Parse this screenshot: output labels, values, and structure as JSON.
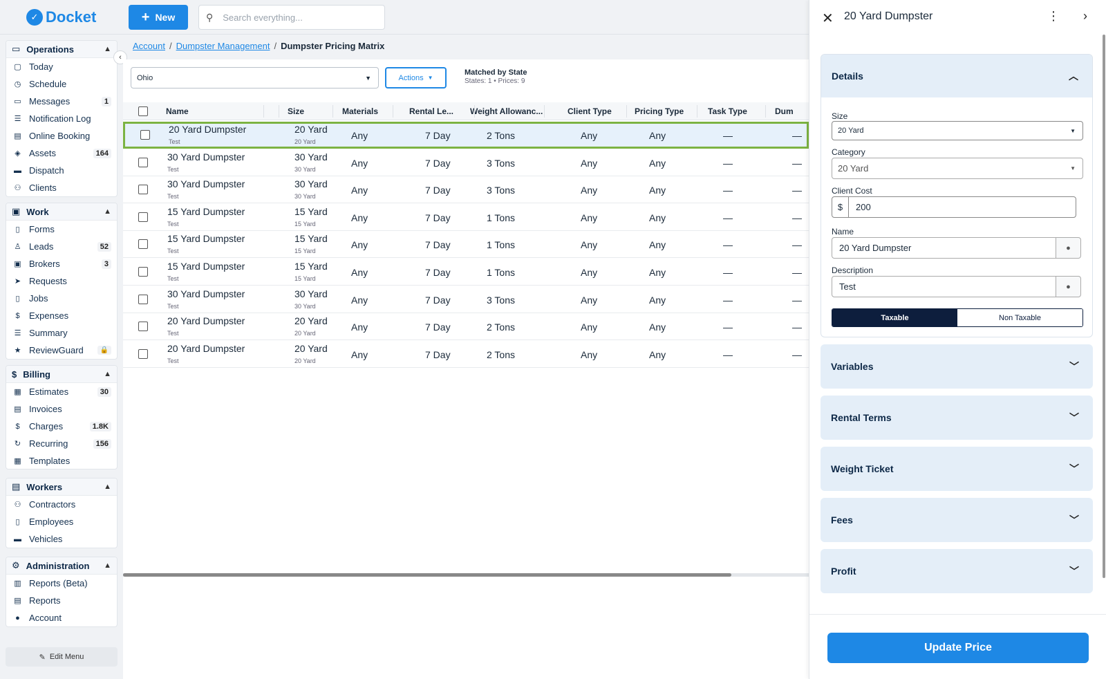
{
  "app": {
    "name": "Docket"
  },
  "topbar": {
    "new_label": "New",
    "search_placeholder": "Search everything..."
  },
  "sidebar": {
    "sections": [
      {
        "title": "Operations",
        "items": [
          {
            "label": "Today",
            "icon": "calendar-icon"
          },
          {
            "label": "Schedule",
            "icon": "clock-icon"
          },
          {
            "label": "Messages",
            "icon": "chat-icon",
            "badge": "1"
          },
          {
            "label": "Notification Log",
            "icon": "list-icon"
          },
          {
            "label": "Online Booking",
            "icon": "store-icon"
          },
          {
            "label": "Assets",
            "icon": "layers-icon",
            "badge": "164"
          },
          {
            "label": "Dispatch",
            "icon": "truck-icon"
          },
          {
            "label": "Clients",
            "icon": "people-icon"
          }
        ]
      },
      {
        "title": "Work",
        "items": [
          {
            "label": "Forms",
            "icon": "doc-icon"
          },
          {
            "label": "Leads",
            "icon": "person-add-icon",
            "badge": "52"
          },
          {
            "label": "Brokers",
            "icon": "briefcase-icon",
            "badge": "3"
          },
          {
            "label": "Requests",
            "icon": "send-icon"
          },
          {
            "label": "Jobs",
            "icon": "search-doc-icon"
          },
          {
            "label": "Expenses",
            "icon": "dollar-circle-icon"
          },
          {
            "label": "Summary",
            "icon": "summary-icon"
          },
          {
            "label": "ReviewGuard",
            "icon": "star-icon",
            "badge": "lock"
          }
        ]
      },
      {
        "title": "Billing",
        "items": [
          {
            "label": "Estimates",
            "icon": "calc-icon",
            "badge": "30"
          },
          {
            "label": "Invoices",
            "icon": "invoice-icon"
          },
          {
            "label": "Charges",
            "icon": "dollar-icon",
            "badge": "1.8K"
          },
          {
            "label": "Recurring",
            "icon": "refresh-icon",
            "badge": "156"
          },
          {
            "label": "Templates",
            "icon": "table-icon"
          }
        ]
      },
      {
        "title": "Workers",
        "items": [
          {
            "label": "Contractors",
            "icon": "contractor-icon"
          },
          {
            "label": "Employees",
            "icon": "badge-icon"
          },
          {
            "label": "Vehicles",
            "icon": "vehicle-icon"
          }
        ]
      },
      {
        "title": "Administration",
        "items": [
          {
            "label": "Reports (Beta)",
            "icon": "chart-icon"
          },
          {
            "label": "Reports",
            "icon": "report-icon"
          },
          {
            "label": "Account",
            "icon": "account-icon"
          }
        ]
      }
    ],
    "edit_menu": "Edit Menu"
  },
  "breadcrumb": {
    "items": [
      "Account",
      "Dumpster Management"
    ],
    "current": "Dumpster Pricing Matrix"
  },
  "toolbar": {
    "state_value": "Ohio",
    "actions_label": "Actions",
    "matched_title": "Matched by State",
    "matched_sub": "States: 1 • Prices: 9"
  },
  "table": {
    "columns": [
      "Name",
      "Size",
      "Materials",
      "Rental Le...",
      "Weight Allowanc...",
      "Client Type",
      "Pricing Type",
      "Task Type",
      "Dum"
    ],
    "rows": [
      {
        "name": "20 Yard Dumpster",
        "desc": "Test",
        "size": "20 Yard",
        "size_sub": "20 Yard",
        "materials": "Any",
        "rental": "7 Day",
        "weight": "2 Tons",
        "client": "Any",
        "pricing": "Any",
        "task": "—",
        "dum": "—"
      },
      {
        "name": "30 Yard Dumpster",
        "desc": "Test",
        "size": "30 Yard",
        "size_sub": "30 Yard",
        "materials": "Any",
        "rental": "7 Day",
        "weight": "3 Tons",
        "client": "Any",
        "pricing": "Any",
        "task": "—",
        "dum": "—"
      },
      {
        "name": "30 Yard Dumpster",
        "desc": "Test",
        "size": "30 Yard",
        "size_sub": "30 Yard",
        "materials": "Any",
        "rental": "7 Day",
        "weight": "3 Tons",
        "client": "Any",
        "pricing": "Any",
        "task": "—",
        "dum": "—"
      },
      {
        "name": "15 Yard Dumpster",
        "desc": "Test",
        "size": "15 Yard",
        "size_sub": "15 Yard",
        "materials": "Any",
        "rental": "7 Day",
        "weight": "1 Tons",
        "client": "Any",
        "pricing": "Any",
        "task": "—",
        "dum": "—"
      },
      {
        "name": "15 Yard Dumpster",
        "desc": "Test",
        "size": "15 Yard",
        "size_sub": "15 Yard",
        "materials": "Any",
        "rental": "7 Day",
        "weight": "1 Tons",
        "client": "Any",
        "pricing": "Any",
        "task": "—",
        "dum": "—"
      },
      {
        "name": "15 Yard Dumpster",
        "desc": "Test",
        "size": "15 Yard",
        "size_sub": "15 Yard",
        "materials": "Any",
        "rental": "7 Day",
        "weight": "1 Tons",
        "client": "Any",
        "pricing": "Any",
        "task": "—",
        "dum": "—"
      },
      {
        "name": "30 Yard Dumpster",
        "desc": "Test",
        "size": "30 Yard",
        "size_sub": "30 Yard",
        "materials": "Any",
        "rental": "7 Day",
        "weight": "3 Tons",
        "client": "Any",
        "pricing": "Any",
        "task": "—",
        "dum": "—"
      },
      {
        "name": "20 Yard Dumpster",
        "desc": "Test",
        "size": "20 Yard",
        "size_sub": "20 Yard",
        "materials": "Any",
        "rental": "7 Day",
        "weight": "2 Tons",
        "client": "Any",
        "pricing": "Any",
        "task": "—",
        "dum": "—"
      },
      {
        "name": "20 Yard Dumpster",
        "desc": "Test",
        "size": "20 Yard",
        "size_sub": "20 Yard",
        "materials": "Any",
        "rental": "7 Day",
        "weight": "2 Tons",
        "client": "Any",
        "pricing": "Any",
        "task": "—",
        "dum": "—"
      }
    ]
  },
  "drawer": {
    "title": "20 Yard Dumpster",
    "details": {
      "title": "Details",
      "size_label": "Size",
      "size_value": "20 Yard",
      "category_label": "Category",
      "category_value": "20 Yard",
      "cost_label": "Client Cost",
      "currency": "$",
      "cost_value": "200",
      "name_label": "Name",
      "name_value": "20 Yard Dumpster",
      "desc_label": "Description",
      "desc_value": "Test",
      "taxable": "Taxable",
      "non_taxable": "Non Taxable"
    },
    "sections": [
      "Variables",
      "Rental Terms",
      "Weight Ticket",
      "Fees",
      "Profit"
    ],
    "update_label": "Update Price"
  },
  "colors": {
    "accent": "#1e88e5",
    "selected_outline": "#7cb342",
    "navy": "#0d1e3d"
  }
}
